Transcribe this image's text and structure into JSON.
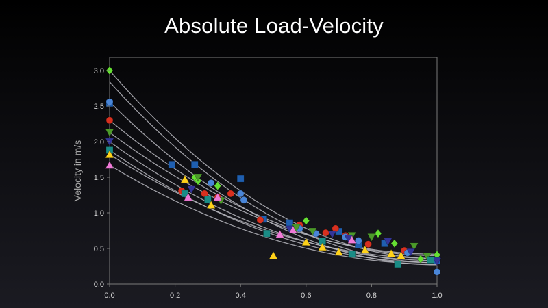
{
  "slide": {
    "title": "Absolute Load-Velocity"
  },
  "chart_data": {
    "type": "scatter",
    "title": "",
    "xlabel": "",
    "ylabel": "Velocity in m/s",
    "xlim": [
      0,
      1
    ],
    "ylim": [
      0,
      3.15
    ],
    "xticks": [
      "0.0",
      "0.2",
      "0.4",
      "0.6",
      "0.8",
      "1.0"
    ],
    "yticks": [
      "0.0",
      "0.5",
      "1.0",
      "1.5",
      "2.0",
      "2.5",
      "3.0"
    ],
    "grid": false,
    "legend": "none",
    "series": [
      {
        "marker": "diamond",
        "color": "#66e033",
        "x": [
          0,
          0.26,
          0.27,
          0.33,
          0.6,
          0.82,
          0.87,
          0.95,
          1.0
        ],
        "y": [
          3.0,
          1.5,
          1.45,
          1.38,
          0.89,
          0.71,
          0.57,
          0.35,
          0.41
        ],
        "fit_start": 3.0,
        "fit_end": 0.36
      },
      {
        "marker": "square",
        "color": "#1f5fb0",
        "x": [
          0,
          0.19,
          0.26,
          0.4,
          0.47,
          0.55,
          0.7,
          0.76,
          0.84,
          1.0
        ],
        "y": [
          2.54,
          1.68,
          1.68,
          1.48,
          0.91,
          0.86,
          0.74,
          0.55,
          0.57,
          0.33
        ],
        "fit_start": 2.84,
        "fit_end": 0.3
      },
      {
        "marker": "circle",
        "color": "#d8301f",
        "x": [
          0,
          0.22,
          0.29,
          0.33,
          0.37,
          0.46,
          0.58,
          0.66,
          0.69,
          0.72,
          0.79,
          0.9
        ],
        "y": [
          2.3,
          1.31,
          1.27,
          1.22,
          1.27,
          0.9,
          0.83,
          0.72,
          0.78,
          0.68,
          0.56,
          0.47
        ],
        "fit_start": 2.3,
        "fit_end": 0.4
      },
      {
        "marker": "circle",
        "color": "#4a86d8",
        "x": [
          0,
          0.31,
          0.4,
          0.41,
          0.58,
          0.63,
          0.72,
          0.76,
          0.91,
          1.0
        ],
        "y": [
          2.56,
          1.42,
          1.27,
          1.18,
          0.78,
          0.71,
          0.66,
          0.61,
          0.44,
          0.17
        ],
        "fit_start": 2.56,
        "fit_end": 0.27
      },
      {
        "marker": "triangle-down",
        "color": "#4c9a2a",
        "x": [
          0,
          0.27,
          0.34,
          0.57,
          0.62,
          0.74,
          0.8,
          0.93,
          0.97
        ],
        "y": [
          2.13,
          1.5,
          1.17,
          0.79,
          0.74,
          0.68,
          0.66,
          0.53,
          0.39
        ],
        "fit_start": 2.13,
        "fit_end": 0.42
      },
      {
        "marker": "triangle-down",
        "color": "#34359a",
        "x": [
          0,
          0.25,
          0.55,
          0.68,
          0.73,
          0.85,
          0.92,
          1.0
        ],
        "y": [
          2.0,
          1.33,
          0.77,
          0.7,
          0.64,
          0.6,
          0.45,
          0.32
        ],
        "fit_start": 2.0,
        "fit_end": 0.33
      },
      {
        "marker": "square",
        "color": "#1a8c86",
        "x": [
          0,
          0.23,
          0.3,
          0.48,
          0.65,
          0.74,
          0.88,
          0.98
        ],
        "y": [
          1.88,
          1.27,
          1.19,
          0.71,
          0.6,
          0.42,
          0.28,
          0.34
        ],
        "fit_start": 1.88,
        "fit_end": 0.3
      },
      {
        "marker": "triangle",
        "color": "#ffd21a",
        "x": [
          0,
          0.23,
          0.31,
          0.5,
          0.6,
          0.65,
          0.7,
          0.78,
          0.86,
          0.89
        ],
        "y": [
          1.82,
          1.47,
          1.11,
          0.4,
          0.59,
          0.52,
          0.45,
          0.48,
          0.43,
          0.4
        ],
        "fit_start": 1.82,
        "fit_end": 0.36
      },
      {
        "marker": "triangle",
        "color": "#f07ad8",
        "x": [
          0,
          0.24,
          0.33,
          0.52,
          0.56,
          0.74
        ],
        "y": [
          1.67,
          1.22,
          1.22,
          0.7,
          0.76,
          0.62
        ],
        "fit_start": 1.67,
        "fit_end": 0.28
      }
    ]
  }
}
